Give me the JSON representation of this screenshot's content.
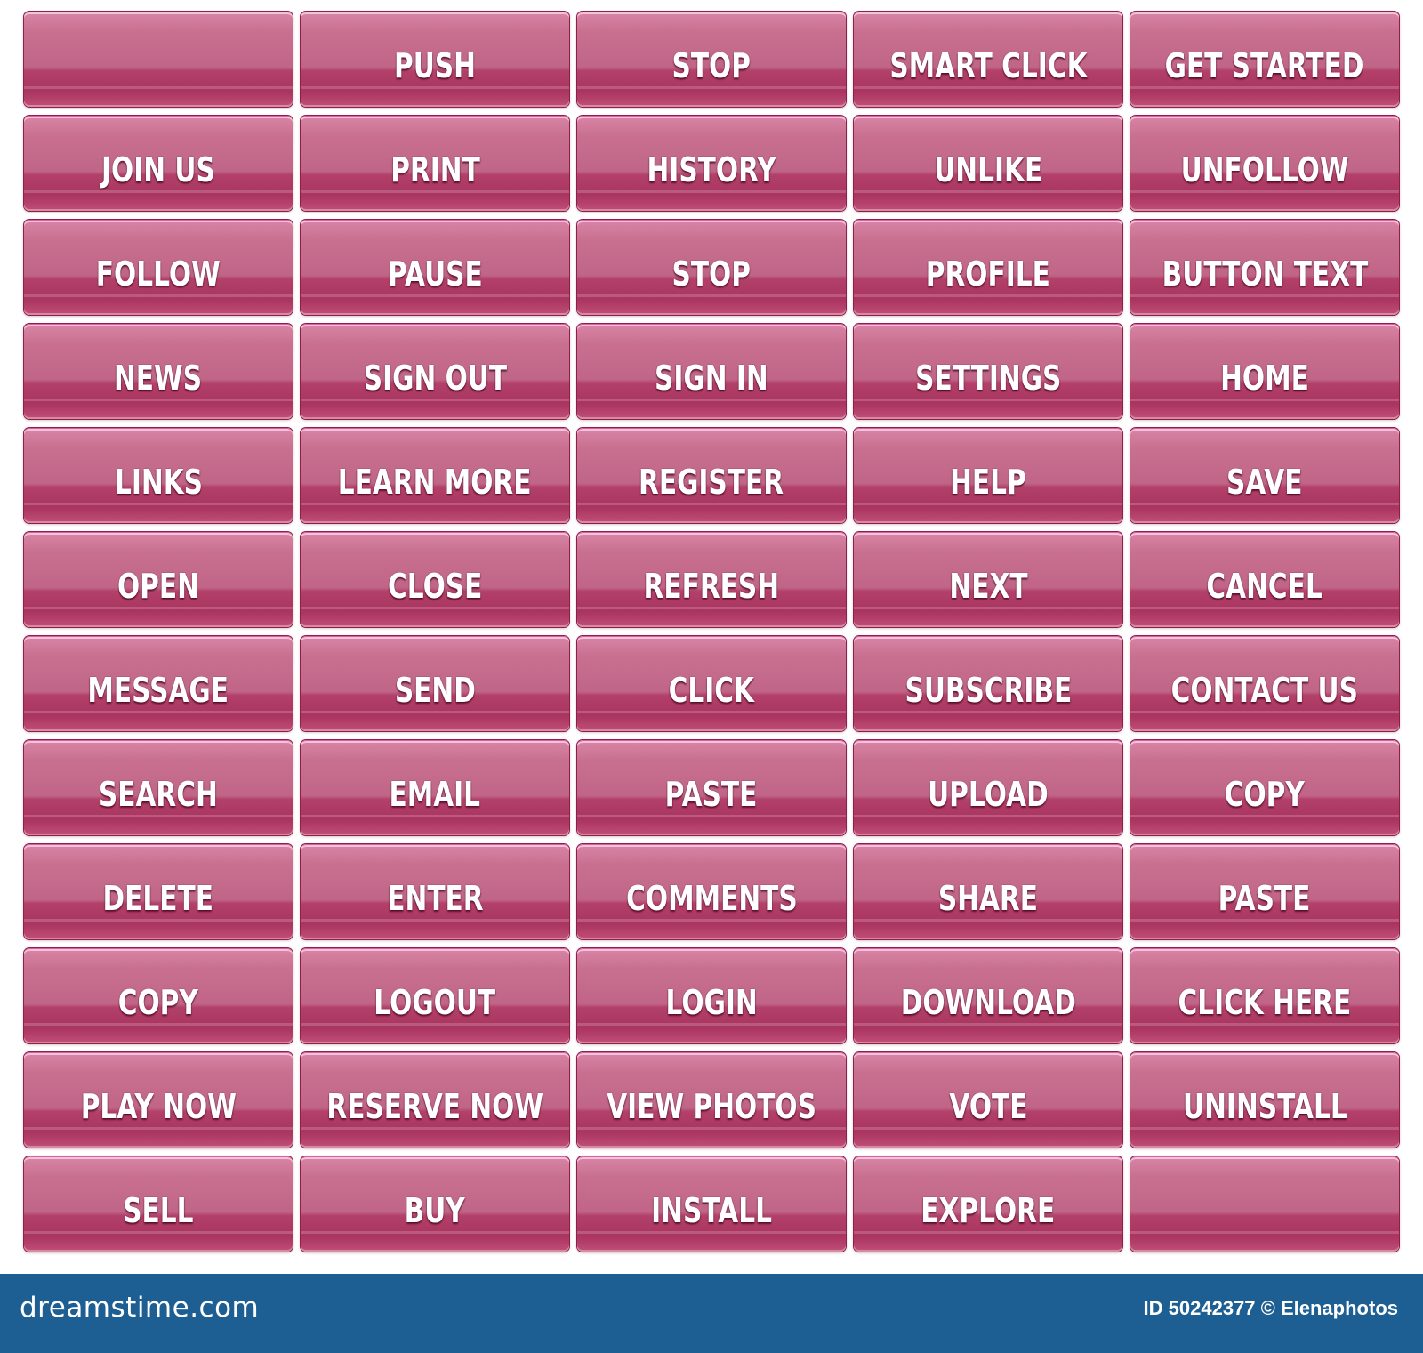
{
  "buttons": [
    "",
    "PUSH",
    "STOP",
    "SMART CLICK",
    "GET STARTED",
    "JOIN US",
    "PRINT",
    "HISTORY",
    "UNLIKE",
    "UNFOLLOW",
    "FOLLOW",
    "PAUSE",
    "STOP",
    "PROFILE",
    "BUTTON TEXT",
    "NEWS",
    "SIGN OUT",
    "SIGN IN",
    "SETTINGS",
    "HOME",
    "LINKS",
    "LEARN MORE",
    "REGISTER",
    "HELP",
    "SAVE",
    "OPEN",
    "CLOSE",
    "REFRESH",
    "NEXT",
    "CANCEL",
    "MESSAGE",
    "SEND",
    "CLICK",
    "SUBSCRIBE",
    "CONTACT US",
    "SEARCH",
    "EMAIL",
    "PASTE",
    "UPLOAD",
    "COPY",
    "DELETE",
    "ENTER",
    "COMMENTS",
    "SHARE",
    "PASTE",
    "COPY",
    "LOGOUT",
    "LOGIN",
    "DOWNLOAD",
    "CLICK HERE",
    "PLAY NOW",
    "RESERVE NOW",
    "VIEW PHOTOS",
    "VOTE",
    "UNINSTALL",
    "SELL",
    "BUY",
    "INSTALL",
    "EXPLORE",
    ""
  ],
  "footer": {
    "site": "dreamstime.com",
    "id_text": "ID 50242377 © Elenaphotos"
  },
  "colors": {
    "button_base": "#c06587",
    "button_dark": "#a93560",
    "button_border": "#8e1f4a",
    "footer_bg": "#1e5f93",
    "label_text": "#ffffff"
  }
}
